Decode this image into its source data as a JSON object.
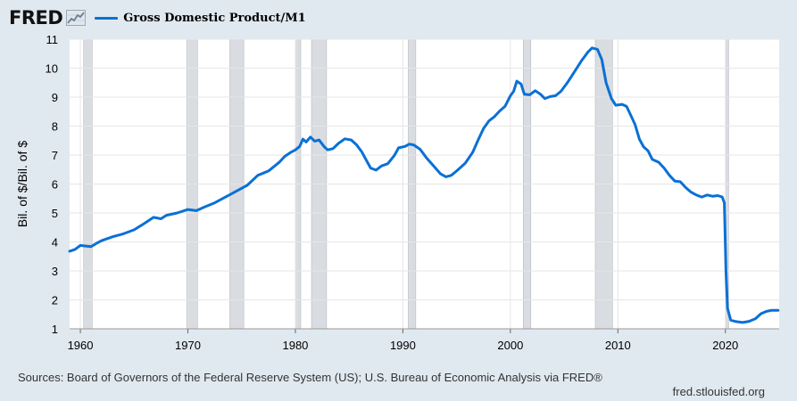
{
  "header": {
    "logo_text": "FRED",
    "logo_icon": "line-graph-icon",
    "legend_label": "Gross Domestic Product/M1"
  },
  "footer": {
    "source": "Sources: Board of Governors of the Federal Reserve System (US); U.S. Bureau of Economic Analysis via FRED®",
    "url": "fred.stlouisfed.org"
  },
  "colors": {
    "line": "#0a70d6",
    "recession": "#d9dce0",
    "grid": "#e6e6e6",
    "page_background": "#e1e9f0",
    "plot_background": "#ffffff"
  },
  "chart_data": {
    "type": "line",
    "title": "",
    "xlabel": "",
    "ylabel": "Bil. of $/Bil. of $",
    "xlim": [
      1959.0,
      2025.0
    ],
    "ylim": [
      1,
      11
    ],
    "x_ticks": [
      "1960",
      "1970",
      "1980",
      "1990",
      "2000",
      "2010",
      "2020"
    ],
    "y_ticks": [
      "1",
      "2",
      "3",
      "4",
      "5",
      "6",
      "7",
      "8",
      "9",
      "10",
      "11"
    ],
    "grid": true,
    "legend": "top-left",
    "recessions": [
      [
        1960.3,
        1961.1
      ],
      [
        1969.9,
        1970.9
      ],
      [
        1973.9,
        1975.2
      ],
      [
        1980.0,
        1980.5
      ],
      [
        1981.5,
        1982.9
      ],
      [
        1990.5,
        1991.2
      ],
      [
        2001.2,
        2001.9
      ],
      [
        2007.9,
        2009.5
      ],
      [
        2020.0,
        2020.3
      ]
    ],
    "series": [
      {
        "name": "Gross Domestic Product/M1",
        "points": [
          [
            1959.0,
            3.68
          ],
          [
            1959.5,
            3.74
          ],
          [
            1960.0,
            3.88
          ],
          [
            1960.5,
            3.86
          ],
          [
            1961.0,
            3.84
          ],
          [
            1961.5,
            3.95
          ],
          [
            1962.0,
            4.05
          ],
          [
            1963.0,
            4.18
          ],
          [
            1964.0,
            4.28
          ],
          [
            1965.0,
            4.42
          ],
          [
            1966.0,
            4.65
          ],
          [
            1966.8,
            4.85
          ],
          [
            1967.5,
            4.8
          ],
          [
            1968.0,
            4.92
          ],
          [
            1969.0,
            5.0
          ],
          [
            1970.0,
            5.12
          ],
          [
            1970.8,
            5.08
          ],
          [
            1971.5,
            5.2
          ],
          [
            1972.5,
            5.35
          ],
          [
            1973.5,
            5.55
          ],
          [
            1974.5,
            5.75
          ],
          [
            1975.5,
            5.95
          ],
          [
            1976.5,
            6.3
          ],
          [
            1977.5,
            6.45
          ],
          [
            1978.5,
            6.75
          ],
          [
            1979.0,
            6.95
          ],
          [
            1979.6,
            7.1
          ],
          [
            1980.0,
            7.18
          ],
          [
            1980.4,
            7.3
          ],
          [
            1980.7,
            7.55
          ],
          [
            1981.0,
            7.45
          ],
          [
            1981.4,
            7.62
          ],
          [
            1981.8,
            7.48
          ],
          [
            1982.2,
            7.52
          ],
          [
            1982.7,
            7.28
          ],
          [
            1983.0,
            7.18
          ],
          [
            1983.5,
            7.22
          ],
          [
            1984.0,
            7.4
          ],
          [
            1984.6,
            7.56
          ],
          [
            1985.2,
            7.52
          ],
          [
            1985.7,
            7.35
          ],
          [
            1986.2,
            7.1
          ],
          [
            1986.7,
            6.75
          ],
          [
            1987.0,
            6.55
          ],
          [
            1987.5,
            6.48
          ],
          [
            1988.0,
            6.62
          ],
          [
            1988.6,
            6.7
          ],
          [
            1989.2,
            6.98
          ],
          [
            1989.6,
            7.25
          ],
          [
            1990.2,
            7.3
          ],
          [
            1990.6,
            7.38
          ],
          [
            1991.0,
            7.35
          ],
          [
            1991.6,
            7.2
          ],
          [
            1992.2,
            6.9
          ],
          [
            1992.8,
            6.65
          ],
          [
            1993.5,
            6.35
          ],
          [
            1994.0,
            6.25
          ],
          [
            1994.5,
            6.3
          ],
          [
            1995.0,
            6.45
          ],
          [
            1995.8,
            6.72
          ],
          [
            1996.5,
            7.1
          ],
          [
            1997.0,
            7.52
          ],
          [
            1997.5,
            7.92
          ],
          [
            1998.0,
            8.18
          ],
          [
            1998.5,
            8.32
          ],
          [
            1999.0,
            8.52
          ],
          [
            1999.5,
            8.68
          ],
          [
            2000.0,
            9.05
          ],
          [
            2000.3,
            9.2
          ],
          [
            2000.6,
            9.55
          ],
          [
            2001.0,
            9.45
          ],
          [
            2001.3,
            9.1
          ],
          [
            2001.8,
            9.08
          ],
          [
            2002.3,
            9.22
          ],
          [
            2002.8,
            9.1
          ],
          [
            2003.2,
            8.95
          ],
          [
            2003.7,
            9.02
          ],
          [
            2004.2,
            9.05
          ],
          [
            2004.7,
            9.2
          ],
          [
            2005.3,
            9.5
          ],
          [
            2006.0,
            9.9
          ],
          [
            2006.6,
            10.25
          ],
          [
            2007.2,
            10.55
          ],
          [
            2007.6,
            10.7
          ],
          [
            2008.1,
            10.65
          ],
          [
            2008.5,
            10.3
          ],
          [
            2008.9,
            9.5
          ],
          [
            2009.4,
            8.95
          ],
          [
            2009.8,
            8.72
          ],
          [
            2010.4,
            8.75
          ],
          [
            2010.8,
            8.68
          ],
          [
            2011.1,
            8.45
          ],
          [
            2011.6,
            8.05
          ],
          [
            2012.0,
            7.55
          ],
          [
            2012.4,
            7.28
          ],
          [
            2012.8,
            7.15
          ],
          [
            2013.2,
            6.85
          ],
          [
            2013.8,
            6.75
          ],
          [
            2014.3,
            6.55
          ],
          [
            2014.8,
            6.3
          ],
          [
            2015.3,
            6.1
          ],
          [
            2015.8,
            6.08
          ],
          [
            2016.3,
            5.88
          ],
          [
            2016.8,
            5.72
          ],
          [
            2017.3,
            5.62
          ],
          [
            2017.8,
            5.55
          ],
          [
            2018.3,
            5.62
          ],
          [
            2018.8,
            5.58
          ],
          [
            2019.3,
            5.6
          ],
          [
            2019.7,
            5.55
          ],
          [
            2019.9,
            5.35
          ],
          [
            2020.05,
            3.0
          ],
          [
            2020.2,
            1.7
          ],
          [
            2020.5,
            1.3
          ],
          [
            2021.0,
            1.25
          ],
          [
            2021.6,
            1.22
          ],
          [
            2022.2,
            1.26
          ],
          [
            2022.8,
            1.35
          ],
          [
            2023.3,
            1.52
          ],
          [
            2023.8,
            1.6
          ],
          [
            2024.3,
            1.64
          ],
          [
            2024.9,
            1.64
          ]
        ]
      }
    ]
  }
}
